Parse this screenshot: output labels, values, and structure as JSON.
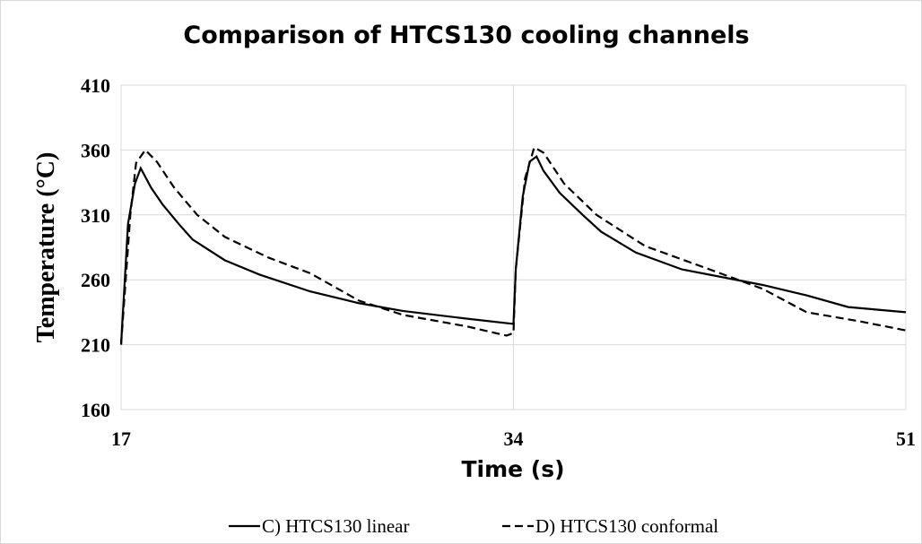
{
  "chart_data": {
    "type": "line",
    "title": "Comparison of HTCS130 cooling channels",
    "xlabel": "Time (s)",
    "ylabel": "Temperature (°C)",
    "xlim": [
      17,
      51
    ],
    "xticks": [
      17,
      34,
      51
    ],
    "ylim": [
      160,
      410
    ],
    "yticks": [
      160,
      210,
      260,
      310,
      360,
      410
    ],
    "grid": true,
    "legend": "bottom",
    "series": [
      {
        "name": "C) HTCS130 linear",
        "color": "#000000",
        "dash": "solid",
        "x": [
          17,
          17.3,
          17.6,
          17.85,
          18.3,
          18.8,
          19.5,
          20.1,
          21.5,
          23,
          25.2,
          27.3,
          29.2,
          32,
          34,
          34.1,
          34.4,
          34.7,
          35,
          35.3,
          36,
          37,
          37.8,
          39.3,
          41.3,
          44.8,
          46.7,
          48.5,
          51
        ],
        "values": [
          210,
          303,
          334,
          346,
          331,
          318,
          303,
          291,
          275,
          264,
          251,
          242,
          236,
          230,
          226,
          268,
          324,
          351,
          355,
          344,
          327,
          310,
          297,
          281,
          268,
          256,
          248,
          239,
          235
        ]
      },
      {
        "name": "D) HTCS130 conformal",
        "color": "#000000",
        "dash": "dashed",
        "x": [
          17,
          17.4,
          17.65,
          18.05,
          18.55,
          19.3,
          20.3,
          21.5,
          23.4,
          25.2,
          27.3,
          29.2,
          32,
          33.7,
          34,
          34.1,
          34.5,
          34.9,
          35.3,
          36.2,
          37.6,
          39.7,
          42.5,
          44.8,
          46.7,
          49,
          51
        ],
        "values": [
          210,
          310,
          350,
          360,
          351,
          331,
          310,
          293,
          277,
          265,
          244,
          233,
          224,
          217,
          219,
          268,
          338,
          362,
          358,
          334,
          310,
          286,
          268,
          253,
          235,
          228,
          221
        ]
      }
    ]
  }
}
